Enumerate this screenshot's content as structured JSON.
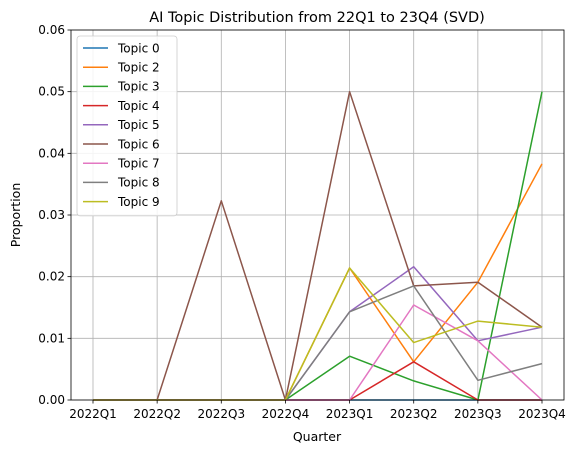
{
  "chart_data": {
    "type": "line",
    "title": "AI Topic Distribution from 22Q1 to 23Q4 (SVD)",
    "xlabel": "Quarter",
    "ylabel": "Proportion",
    "categories": [
      "2022Q1",
      "2022Q2",
      "2022Q3",
      "2022Q4",
      "2023Q1",
      "2023Q2",
      "2023Q3",
      "2023Q4"
    ],
    "ylim": [
      0,
      0.06
    ],
    "yticks": [
      "0.00",
      "0.01",
      "0.02",
      "0.03",
      "0.04",
      "0.05",
      "0.06"
    ],
    "grid": true,
    "legend_position": "top-left",
    "series": [
      {
        "name": "Topic 0",
        "color": "#1f77b4",
        "values": [
          0,
          0,
          0,
          0,
          0,
          0,
          0,
          0
        ]
      },
      {
        "name": "Topic 2",
        "color": "#ff7f0e",
        "values": [
          0,
          0,
          0,
          0,
          0.0214,
          0.0062,
          0.0191,
          0.0383
        ]
      },
      {
        "name": "Topic 3",
        "color": "#2ca02c",
        "values": [
          0,
          0,
          0,
          0,
          0.0071,
          0.0031,
          0,
          0.05
        ]
      },
      {
        "name": "Topic 4",
        "color": "#d62728",
        "values": [
          0,
          0,
          0,
          0,
          0,
          0.0062,
          0,
          0
        ]
      },
      {
        "name": "Topic 5",
        "color": "#9467bd",
        "values": [
          0,
          0,
          0,
          0,
          0.0143,
          0.0216,
          0.0096,
          0.0118
        ]
      },
      {
        "name": "Topic 6",
        "color": "#8c564b",
        "values": [
          0,
          0,
          0.0323,
          0,
          0.05,
          0.0185,
          0.0191,
          0.0118
        ]
      },
      {
        "name": "Topic 7",
        "color": "#e377c2",
        "values": [
          0,
          0,
          0,
          0,
          0,
          0.0154,
          0.0096,
          0
        ]
      },
      {
        "name": "Topic 8",
        "color": "#7f7f7f",
        "values": [
          0,
          0,
          0,
          0,
          0.0143,
          0.0185,
          0.0032,
          0.0059
        ]
      },
      {
        "name": "Topic 9",
        "color": "#bcbd22",
        "values": [
          0,
          0,
          0,
          0,
          0.0214,
          0.0093,
          0.0128,
          0.0118
        ]
      }
    ]
  }
}
